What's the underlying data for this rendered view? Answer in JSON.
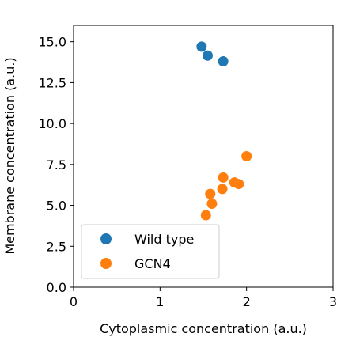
{
  "chart_data": {
    "type": "scatter",
    "xlabel": "Cytoplasmic concentration (a.u.)",
    "ylabel": "Membrane concentration (a.u.)",
    "xlim": [
      0,
      3
    ],
    "ylim": [
      0,
      16
    ],
    "xticks": [
      "0",
      "1",
      "2",
      "3"
    ],
    "yticks": [
      "0.0",
      "2.5",
      "5.0",
      "7.5",
      "10.0",
      "12.5",
      "15.0"
    ],
    "grid": false,
    "legend_position": "lower-left",
    "series": [
      {
        "name": "Wild type",
        "color": "#1f77b4",
        "points": [
          [
            1.48,
            14.7
          ],
          [
            1.55,
            14.15
          ],
          [
            1.73,
            13.8
          ]
        ]
      },
      {
        "name": "GCN4",
        "color": "#ff7f0e",
        "points": [
          [
            2.0,
            8.0
          ],
          [
            1.73,
            6.7
          ],
          [
            1.86,
            6.4
          ],
          [
            1.91,
            6.3
          ],
          [
            1.72,
            6.0
          ],
          [
            1.58,
            5.7
          ],
          [
            1.6,
            5.1
          ],
          [
            1.53,
            4.4
          ]
        ]
      }
    ]
  }
}
